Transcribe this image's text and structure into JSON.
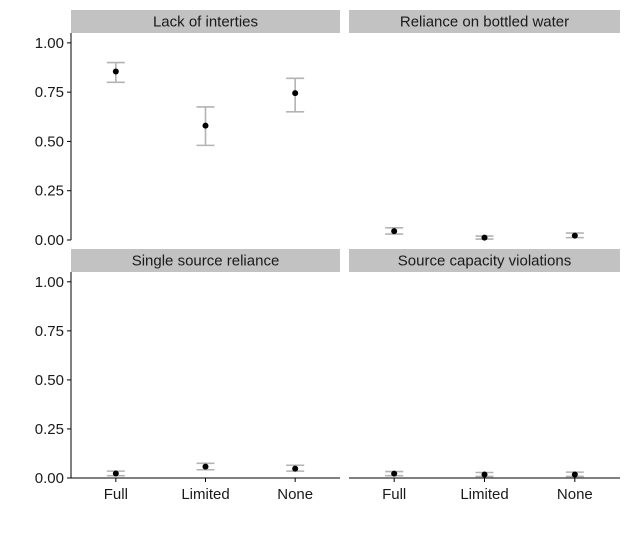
{
  "chart_data": {
    "type": "scatter",
    "layout": "2x2 facet grid with shared axes",
    "categories": [
      "Full",
      "Limited",
      "None"
    ],
    "ylim": [
      0,
      1.05
    ],
    "y_ticks": [
      "0.00",
      "0.25",
      "0.50",
      "0.75",
      "1.00"
    ],
    "y_tick_values": [
      0,
      0.25,
      0.5,
      0.75,
      1.0
    ],
    "grid": false,
    "xlabel": "",
    "ylabel": "",
    "colors": {
      "point": "#000000",
      "errorbar": "#b3b3b3",
      "strip": "#c2c2c2",
      "axis": "#000000"
    },
    "panels": [
      {
        "title": "Lack of interties",
        "values": [
          0.855,
          0.58,
          0.745
        ],
        "lower": [
          0.8,
          0.48,
          0.65
        ],
        "upper": [
          0.9,
          0.675,
          0.82
        ]
      },
      {
        "title": "Reliance on bottled water",
        "values": [
          0.045,
          0.012,
          0.022
        ],
        "lower": [
          0.03,
          0.005,
          0.012
        ],
        "upper": [
          0.062,
          0.02,
          0.035
        ]
      },
      {
        "title": "Single source reliance",
        "values": [
          0.023,
          0.058,
          0.048
        ],
        "lower": [
          0.012,
          0.042,
          0.035
        ],
        "upper": [
          0.035,
          0.075,
          0.065
        ]
      },
      {
        "title": "Source capacity violations",
        "values": [
          0.022,
          0.018,
          0.018
        ],
        "lower": [
          0.012,
          0.008,
          0.008
        ],
        "upper": [
          0.033,
          0.028,
          0.03
        ]
      }
    ]
  }
}
